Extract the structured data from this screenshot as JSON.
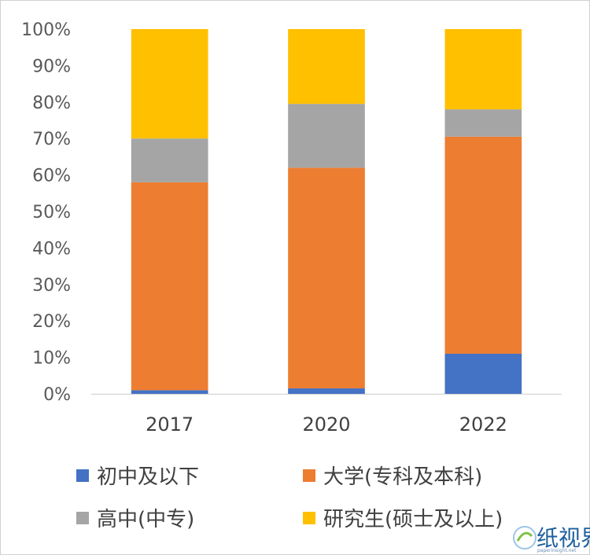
{
  "chart_data": {
    "type": "bar",
    "stacked": true,
    "normalized": true,
    "categories": [
      "2017",
      "2020",
      "2022"
    ],
    "y_ticks": [
      "0%",
      "10%",
      "20%",
      "30%",
      "40%",
      "50%",
      "60%",
      "70%",
      "80%",
      "90%",
      "100%"
    ],
    "ylim": [
      0,
      100
    ],
    "grid": false,
    "legend_position": "bottom",
    "series": [
      {
        "name": "初中及以下",
        "color": "#4472C4",
        "values": [
          1,
          1.5,
          11
        ]
      },
      {
        "name": "大学(专科及本科)",
        "color": "#ED7D31",
        "values": [
          57,
          60.5,
          59.5
        ]
      },
      {
        "name": "高中(中专)",
        "color": "#A5A5A5",
        "values": [
          12,
          17.5,
          7.5
        ]
      },
      {
        "name": "研究生(硕士及以上)",
        "color": "#FFC000",
        "values": [
          30,
          20.5,
          22
        ]
      }
    ]
  },
  "watermark": {
    "text": "纸视界",
    "sub": "paperinsight.net"
  }
}
